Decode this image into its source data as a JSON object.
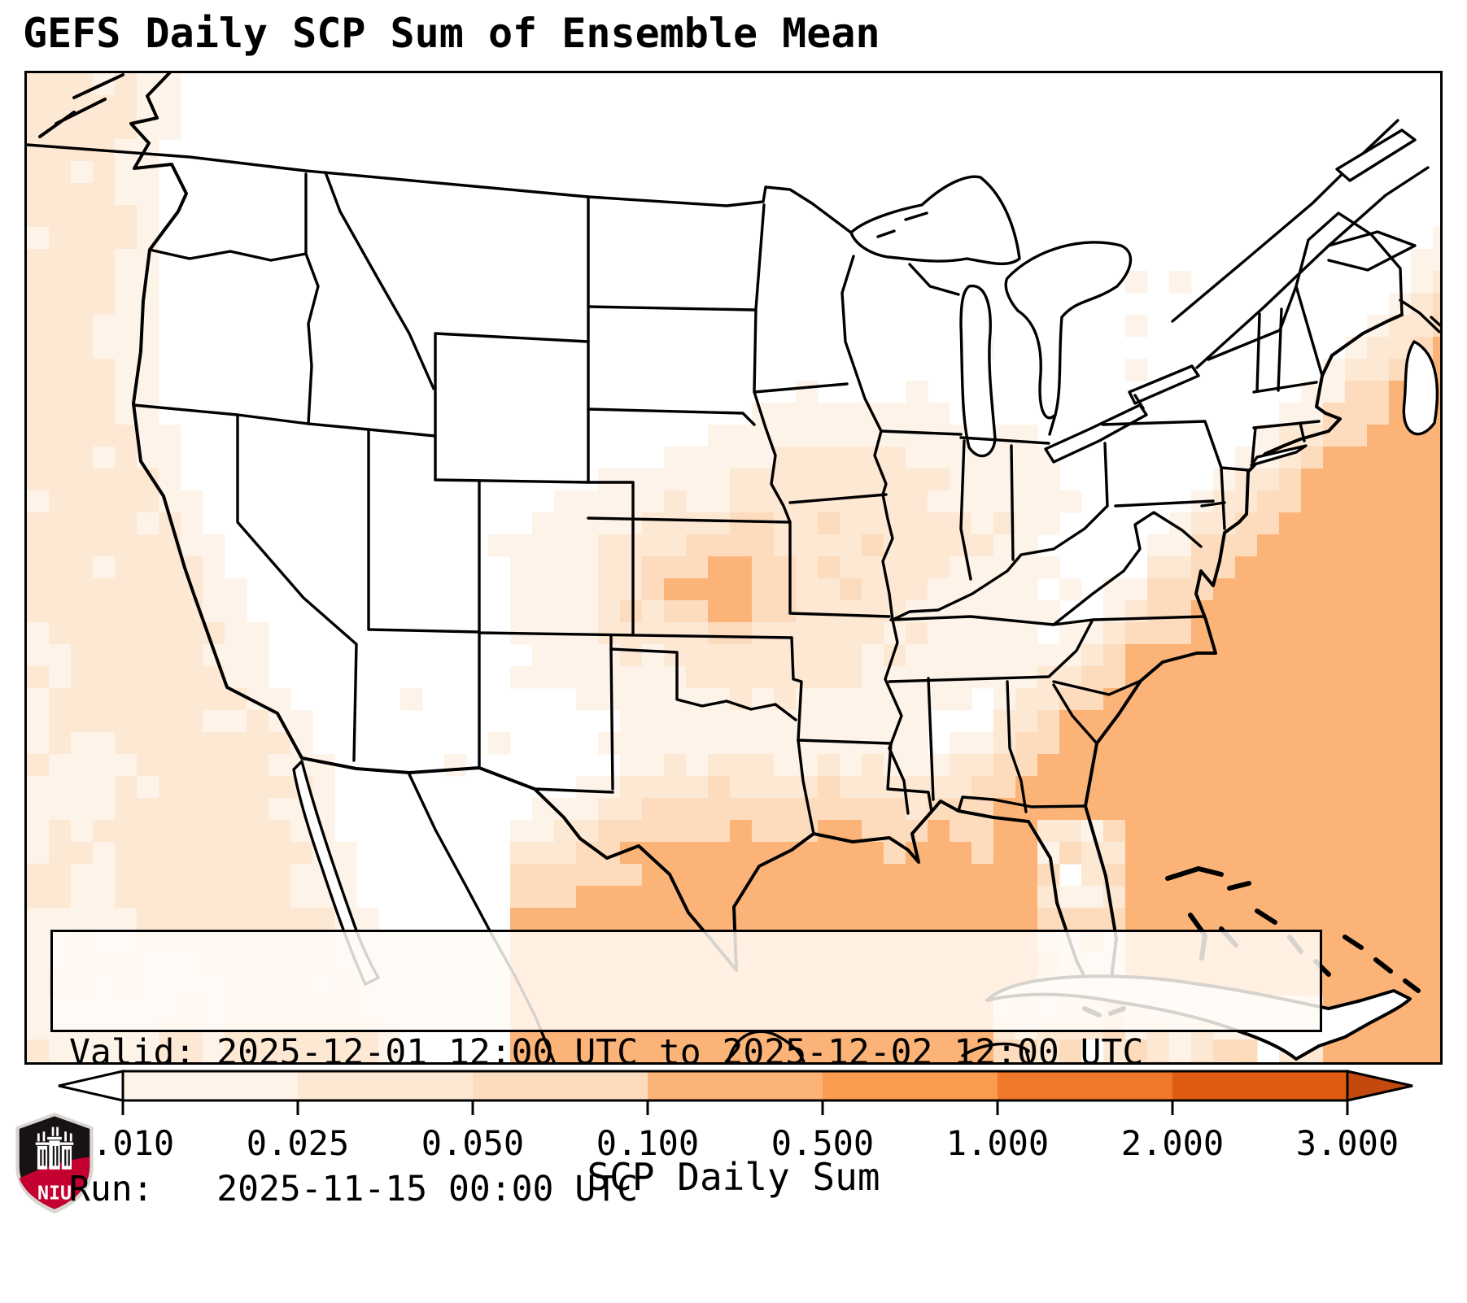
{
  "title": "GEFS Daily SCP Sum of Ensemble Mean",
  "info_box": {
    "line1": "Valid: 2025-12-01 12:00 UTC to 2025-12-02 12:00 UTC",
    "line2": "Run:   2025-11-15 00:00 UTC"
  },
  "chart_data": {
    "type": "heatmap",
    "title": "GEFS Daily SCP Sum of Ensemble Mean",
    "model": "GEFS",
    "variable": "SCP Daily Sum",
    "valid_period": "2025-12-01 12:00 UTC to 2025-12-02 12:00 UTC",
    "run_time": "2025-11-15 00:00 UTC",
    "colorbar": {
      "label": "SCP Daily Sum",
      "tick_labels": [
        "0.010",
        "0.025",
        "0.050",
        "0.100",
        "0.500",
        "1.000",
        "2.000",
        "3.000"
      ],
      "levels": [
        0.01,
        0.025,
        0.05,
        0.1,
        0.5,
        1.0,
        2.0,
        3.0
      ],
      "bin_colors": [
        "#fdf3e8",
        "#fde8d3",
        "#fddcbd",
        "#fbb377",
        "#fb9b4e",
        "#f0782a",
        "#e05c12"
      ],
      "under_color": "#ffffff",
      "over_color": "#c4490f",
      "extend": "both",
      "orientation": "horizontal"
    },
    "pattern_regions": [
      {
        "area": "Gulf of Mexico open water",
        "approx_value": "0.1-0.5"
      },
      {
        "area": "Western Atlantic offshore of Southeast US coast (FL to NC) and Bahamas",
        "approx_value": "0.1-0.5"
      },
      {
        "area": "Coastal plain of LA/MS/AL/GA/SC/NC and Florida peninsula",
        "approx_value": "0.01-0.1 speckled"
      },
      {
        "area": "Southern Plains hotspot near KS/OK/MO junction",
        "approx_value": "0.1-0.5 small core, 0.01-0.1 surrounding"
      },
      {
        "area": "East Texas through Arkansas and Missouri",
        "approx_value": "0.01-0.05 patchy"
      },
      {
        "area": "Pacific waters off WA/OR/CA and Baja California",
        "approx_value": "0.01-0.05 patchy"
      },
      {
        "area": "Upper Midwest and Northeast offshore",
        "approx_value": "0.01-0.025 sparse"
      },
      {
        "area": "Interior West, Northern Plains, interior Northeast",
        "approx_value": "< 0.01 (white)"
      }
    ]
  },
  "logo": {
    "text": "NIU",
    "black": "#171314",
    "red": "#c3002f",
    "trim": "#d9d5d2"
  }
}
